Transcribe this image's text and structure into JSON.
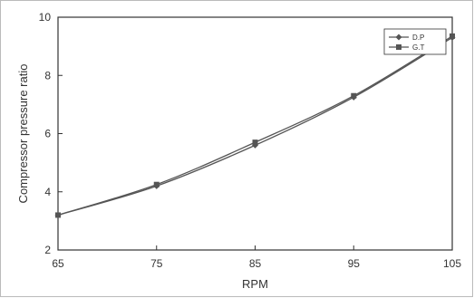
{
  "chart_data": {
    "type": "line",
    "xlabel": "RPM",
    "ylabel": "Compressor pressure ratio",
    "xlim": [
      65,
      105
    ],
    "ylim": [
      2,
      10
    ],
    "x_ticks": [
      "65",
      "75",
      "85",
      "95",
      "105"
    ],
    "y_ticks": [
      "2",
      "4",
      "6",
      "8",
      "10"
    ],
    "grid": false,
    "legend_position": "top-right",
    "colors": {
      "line": "#555555",
      "axis": "#333333",
      "frame": "#bbbbbb"
    },
    "series": [
      {
        "name": "D.P",
        "marker": "diamond",
        "x": [
          65,
          75,
          85,
          95,
          105
        ],
        "y": [
          3.2,
          4.2,
          5.6,
          7.25,
          9.3
        ]
      },
      {
        "name": "G.T",
        "marker": "square",
        "x": [
          65,
          75,
          85,
          95,
          105
        ],
        "y": [
          3.2,
          4.25,
          5.7,
          7.3,
          9.35
        ]
      }
    ]
  }
}
